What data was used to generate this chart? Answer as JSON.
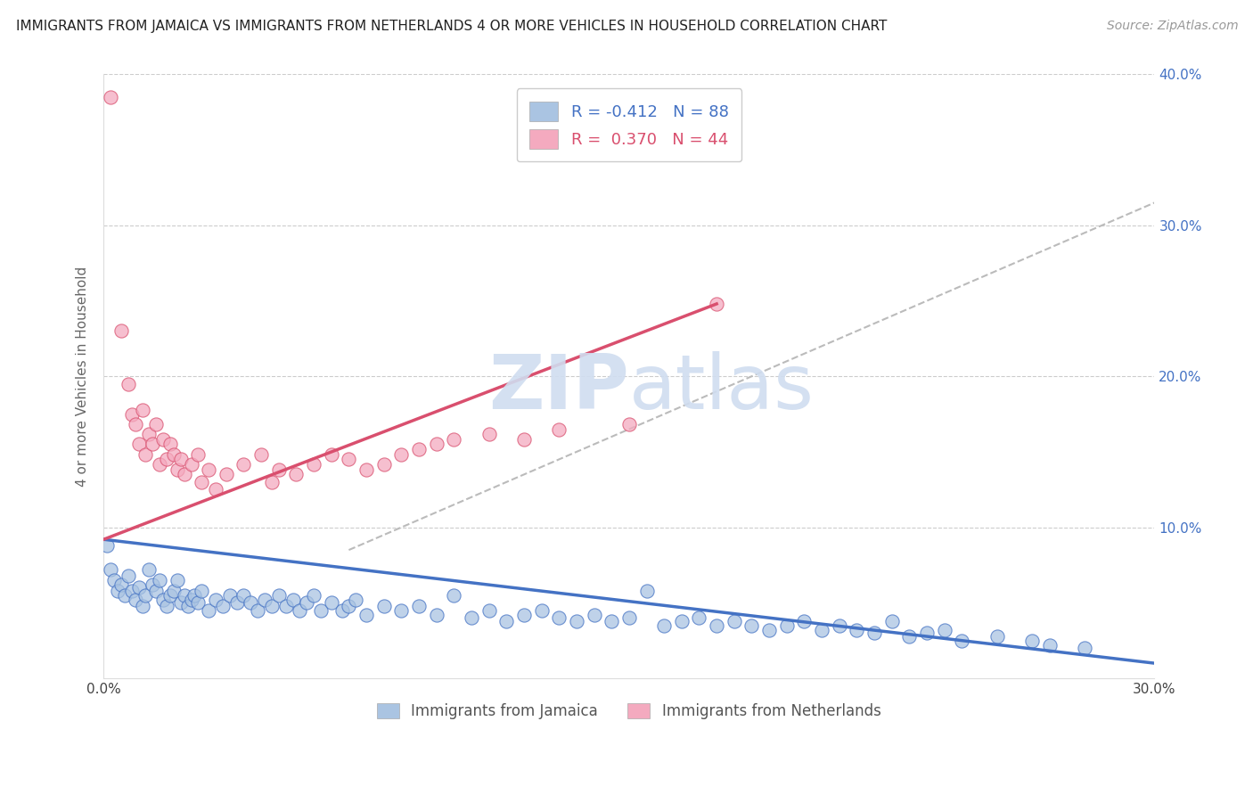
{
  "title": "IMMIGRANTS FROM JAMAICA VS IMMIGRANTS FROM NETHERLANDS 4 OR MORE VEHICLES IN HOUSEHOLD CORRELATION CHART",
  "source": "Source: ZipAtlas.com",
  "xlabel_blue": "Immigrants from Jamaica",
  "xlabel_pink": "Immigrants from Netherlands",
  "ylabel": "4 or more Vehicles in Household",
  "R_blue": -0.412,
  "N_blue": 88,
  "R_pink": 0.37,
  "N_pink": 44,
  "xlim": [
    0.0,
    0.3
  ],
  "ylim": [
    0.0,
    0.4
  ],
  "color_blue": "#aac4e2",
  "color_pink": "#f4aabf",
  "line_color_blue": "#4472c4",
  "line_color_pink": "#d94f6e",
  "watermark_color": "#d0ddf0",
  "blue_points": [
    [
      0.001,
      0.088
    ],
    [
      0.002,
      0.072
    ],
    [
      0.003,
      0.065
    ],
    [
      0.004,
      0.058
    ],
    [
      0.005,
      0.062
    ],
    [
      0.006,
      0.055
    ],
    [
      0.007,
      0.068
    ],
    [
      0.008,
      0.058
    ],
    [
      0.009,
      0.052
    ],
    [
      0.01,
      0.06
    ],
    [
      0.011,
      0.048
    ],
    [
      0.012,
      0.055
    ],
    [
      0.013,
      0.072
    ],
    [
      0.014,
      0.062
    ],
    [
      0.015,
      0.058
    ],
    [
      0.016,
      0.065
    ],
    [
      0.017,
      0.052
    ],
    [
      0.018,
      0.048
    ],
    [
      0.019,
      0.055
    ],
    [
      0.02,
      0.058
    ],
    [
      0.021,
      0.065
    ],
    [
      0.022,
      0.05
    ],
    [
      0.023,
      0.055
    ],
    [
      0.024,
      0.048
    ],
    [
      0.025,
      0.052
    ],
    [
      0.026,
      0.055
    ],
    [
      0.027,
      0.05
    ],
    [
      0.028,
      0.058
    ],
    [
      0.03,
      0.045
    ],
    [
      0.032,
      0.052
    ],
    [
      0.034,
      0.048
    ],
    [
      0.036,
      0.055
    ],
    [
      0.038,
      0.05
    ],
    [
      0.04,
      0.055
    ],
    [
      0.042,
      0.05
    ],
    [
      0.044,
      0.045
    ],
    [
      0.046,
      0.052
    ],
    [
      0.048,
      0.048
    ],
    [
      0.05,
      0.055
    ],
    [
      0.052,
      0.048
    ],
    [
      0.054,
      0.052
    ],
    [
      0.056,
      0.045
    ],
    [
      0.058,
      0.05
    ],
    [
      0.06,
      0.055
    ],
    [
      0.062,
      0.045
    ],
    [
      0.065,
      0.05
    ],
    [
      0.068,
      0.045
    ],
    [
      0.07,
      0.048
    ],
    [
      0.072,
      0.052
    ],
    [
      0.075,
      0.042
    ],
    [
      0.08,
      0.048
    ],
    [
      0.085,
      0.045
    ],
    [
      0.09,
      0.048
    ],
    [
      0.095,
      0.042
    ],
    [
      0.1,
      0.055
    ],
    [
      0.105,
      0.04
    ],
    [
      0.11,
      0.045
    ],
    [
      0.115,
      0.038
    ],
    [
      0.12,
      0.042
    ],
    [
      0.125,
      0.045
    ],
    [
      0.13,
      0.04
    ],
    [
      0.135,
      0.038
    ],
    [
      0.14,
      0.042
    ],
    [
      0.145,
      0.038
    ],
    [
      0.15,
      0.04
    ],
    [
      0.155,
      0.058
    ],
    [
      0.16,
      0.035
    ],
    [
      0.165,
      0.038
    ],
    [
      0.17,
      0.04
    ],
    [
      0.175,
      0.035
    ],
    [
      0.18,
      0.038
    ],
    [
      0.185,
      0.035
    ],
    [
      0.19,
      0.032
    ],
    [
      0.195,
      0.035
    ],
    [
      0.2,
      0.038
    ],
    [
      0.205,
      0.032
    ],
    [
      0.21,
      0.035
    ],
    [
      0.215,
      0.032
    ],
    [
      0.22,
      0.03
    ],
    [
      0.225,
      0.038
    ],
    [
      0.23,
      0.028
    ],
    [
      0.235,
      0.03
    ],
    [
      0.24,
      0.032
    ],
    [
      0.245,
      0.025
    ],
    [
      0.255,
      0.028
    ],
    [
      0.265,
      0.025
    ],
    [
      0.27,
      0.022
    ],
    [
      0.28,
      0.02
    ]
  ],
  "pink_points": [
    [
      0.002,
      0.385
    ],
    [
      0.005,
      0.23
    ],
    [
      0.007,
      0.195
    ],
    [
      0.008,
      0.175
    ],
    [
      0.009,
      0.168
    ],
    [
      0.01,
      0.155
    ],
    [
      0.011,
      0.178
    ],
    [
      0.012,
      0.148
    ],
    [
      0.013,
      0.162
    ],
    [
      0.014,
      0.155
    ],
    [
      0.015,
      0.168
    ],
    [
      0.016,
      0.142
    ],
    [
      0.017,
      0.158
    ],
    [
      0.018,
      0.145
    ],
    [
      0.019,
      0.155
    ],
    [
      0.02,
      0.148
    ],
    [
      0.021,
      0.138
    ],
    [
      0.022,
      0.145
    ],
    [
      0.023,
      0.135
    ],
    [
      0.025,
      0.142
    ],
    [
      0.027,
      0.148
    ],
    [
      0.028,
      0.13
    ],
    [
      0.03,
      0.138
    ],
    [
      0.032,
      0.125
    ],
    [
      0.035,
      0.135
    ],
    [
      0.04,
      0.142
    ],
    [
      0.045,
      0.148
    ],
    [
      0.048,
      0.13
    ],
    [
      0.05,
      0.138
    ],
    [
      0.055,
      0.135
    ],
    [
      0.06,
      0.142
    ],
    [
      0.065,
      0.148
    ],
    [
      0.07,
      0.145
    ],
    [
      0.075,
      0.138
    ],
    [
      0.08,
      0.142
    ],
    [
      0.085,
      0.148
    ],
    [
      0.09,
      0.152
    ],
    [
      0.095,
      0.155
    ],
    [
      0.1,
      0.158
    ],
    [
      0.11,
      0.162
    ],
    [
      0.12,
      0.158
    ],
    [
      0.13,
      0.165
    ],
    [
      0.15,
      0.168
    ],
    [
      0.175,
      0.248
    ]
  ],
  "blue_line_x": [
    0.0,
    0.3
  ],
  "blue_line_y": [
    0.092,
    0.01
  ],
  "pink_line_x": [
    0.0,
    0.175
  ],
  "pink_line_y": [
    0.092,
    0.248
  ],
  "dash_line_x": [
    0.07,
    0.3
  ],
  "dash_line_y": [
    0.085,
    0.315
  ]
}
